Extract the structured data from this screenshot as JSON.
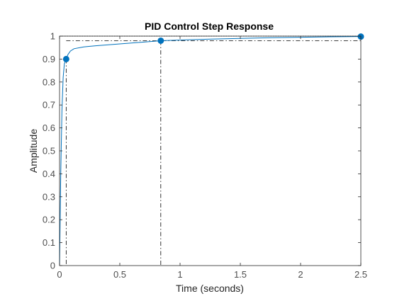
{
  "chart_data": {
    "type": "line",
    "title": "PID Control Step Response",
    "xlabel": "Time (seconds)",
    "ylabel": "Amplitude",
    "xlim": [
      0,
      2.5
    ],
    "ylim": [
      0,
      1
    ],
    "grid": false,
    "box": true,
    "colors": {
      "line": "#0072bd",
      "ref": "#000000",
      "axis": "#262626",
      "tick_label": "#4d4d4d"
    },
    "xticks": [
      0,
      0.5,
      1,
      1.5,
      2,
      2.5
    ],
    "xtick_labels": [
      "0",
      "0.5",
      "1",
      "1.5",
      "2",
      "2.5"
    ],
    "yticks": [
      0,
      0.1,
      0.2,
      0.3,
      0.4,
      0.5,
      0.6,
      0.7,
      0.8,
      0.9,
      1
    ],
    "ytick_labels": [
      "0",
      "0.1",
      "0.2",
      "0.3",
      "0.4",
      "0.5",
      "0.6",
      "0.7",
      "0.8",
      "0.9",
      "1"
    ],
    "series": [
      {
        "x": [
          0,
          0.005,
          0.01,
          0.02,
          0.03,
          0.04,
          0.055,
          0.07,
          0.09,
          0.12,
          0.2,
          0.3,
          0.5,
          0.7,
          0.84,
          1.0,
          1.25,
          1.5,
          1.75,
          2.0,
          2.25,
          2.5
        ],
        "y": [
          0,
          0.2,
          0.4,
          0.68,
          0.82,
          0.88,
          0.9,
          0.92,
          0.935,
          0.945,
          0.953,
          0.958,
          0.966,
          0.974,
          0.98,
          0.983,
          0.987,
          0.99,
          0.993,
          0.995,
          0.997,
          0.998
        ]
      }
    ],
    "markers": [
      {
        "x": 0.055,
        "y": 0.9
      },
      {
        "x": 0.84,
        "y": 0.98
      },
      {
        "x": 2.5,
        "y": 0.998
      }
    ],
    "reference_lines": {
      "final_value": 1,
      "settling_band": 0.98,
      "rise_time": 0.055,
      "settling_time": 0.84
    }
  }
}
